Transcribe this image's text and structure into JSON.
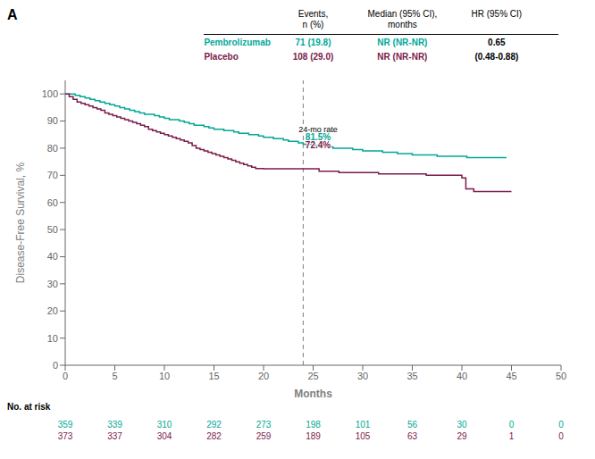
{
  "chart_data": {
    "type": "step",
    "title": "A",
    "x_label": "Months",
    "y_label": "Disease-Free Survival, %",
    "xlim": [
      0,
      50
    ],
    "xticks": [
      0,
      5,
      10,
      15,
      20,
      25,
      30,
      35,
      40,
      45,
      50
    ],
    "ylim": [
      0,
      105
    ],
    "yticks": [
      0,
      10,
      20,
      30,
      40,
      50,
      60,
      70,
      80,
      90,
      100
    ],
    "grid": false,
    "series": [
      {
        "name": "Pembrolizumab",
        "color": "#00A896",
        "x": [
          0,
          0.5,
          1,
          1.5,
          2,
          2.5,
          3,
          3.5,
          4,
          4.5,
          5,
          5.5,
          6,
          6.5,
          7,
          7.5,
          8,
          8.5,
          9,
          9.5,
          10,
          10.5,
          11,
          11.5,
          12,
          12.5,
          13,
          13.5,
          14,
          14.5,
          15,
          15.5,
          16,
          16.5,
          17,
          17.5,
          18,
          18.5,
          19,
          19.5,
          20,
          20.5,
          21,
          21.5,
          22,
          22.5,
          23,
          23.5,
          24,
          24.5,
          25,
          25.5,
          26,
          26.5,
          27,
          27.5,
          28,
          28.5,
          29,
          29.5,
          30,
          30.5,
          31,
          31.5,
          32,
          32.5,
          33,
          33.5,
          34,
          34.5,
          35,
          35.5,
          36,
          36.5,
          37,
          37.5,
          38,
          38.5,
          39,
          39.5,
          40,
          40.5,
          41,
          41.5,
          42,
          42.5,
          43,
          43.5,
          44,
          44.5
        ],
        "values": [
          100,
          100,
          99.5,
          99,
          98.5,
          98,
          97.5,
          97,
          96.5,
          96,
          95.5,
          95,
          94.5,
          94,
          93.5,
          93,
          92.5,
          92.5,
          92,
          91.5,
          91,
          90.5,
          90.5,
          90,
          89.5,
          89,
          88.5,
          88.5,
          88,
          87.5,
          87,
          87,
          86.5,
          86.5,
          86,
          85.5,
          85.5,
          85,
          85,
          84.5,
          84,
          84,
          83.5,
          83.5,
          83,
          82.5,
          82.5,
          82,
          81.5,
          81.5,
          81,
          81,
          80.5,
          80.5,
          80,
          80,
          80,
          80,
          79.5,
          79.5,
          79,
          79,
          79,
          79,
          78.5,
          78.5,
          78.5,
          78,
          78,
          78,
          77.5,
          77.5,
          77.5,
          77.5,
          77.5,
          77,
          77,
          77,
          77,
          77,
          77,
          76.5,
          76.5,
          76.5,
          76.5,
          76.5,
          76.5,
          76.5,
          76.5,
          76.5
        ],
        "at_risk": [
          359,
          339,
          310,
          292,
          273,
          198,
          101,
          56,
          30,
          0,
          0
        ]
      },
      {
        "name": "Placebo",
        "color": "#7B1C4B",
        "x": [
          0,
          0.4,
          0.8,
          1.2,
          1.6,
          2.0,
          2.4,
          2.8,
          3.2,
          3.6,
          4.0,
          4.4,
          4.8,
          5.2,
          5.6,
          6.0,
          6.4,
          6.8,
          7.2,
          7.6,
          8.0,
          8.4,
          8.8,
          9.2,
          9.6,
          10.0,
          10.4,
          10.8,
          11.2,
          11.6,
          12.0,
          12.4,
          12.8,
          13.2,
          13.6,
          14.0,
          14.4,
          14.8,
          15.2,
          15.6,
          16.0,
          16.4,
          16.8,
          17.2,
          17.6,
          18.0,
          18.4,
          18.8,
          19.2,
          19.6,
          20.0,
          20.4,
          20.8,
          21.2,
          21.6,
          22.0,
          22.4,
          22.8,
          23.2,
          23.6,
          24.0,
          24.4,
          24.8,
          25.2,
          25.6,
          26.0,
          26.4,
          26.8,
          27.2,
          27.6,
          28.0,
          28.4,
          28.8,
          29.2,
          29.6,
          30.0,
          30.4,
          30.8,
          31.2,
          31.6,
          32.0,
          32.4,
          32.8,
          33.2,
          33.6,
          34.0,
          34.4,
          34.8,
          35.2,
          35.6,
          36.0,
          36.4,
          36.8,
          37.2,
          37.6,
          38.0,
          38.4,
          38.8,
          39.2,
          39.6,
          40.0,
          40.4,
          40.8,
          41.2,
          41.6,
          42.0,
          42.4,
          42.8,
          43.2,
          43.6,
          44.0,
          44.4,
          44.8,
          45.0
        ],
        "values": [
          100,
          99,
          98,
          97,
          96.5,
          96,
          95.5,
          95,
          94.5,
          94,
          93,
          92.5,
          92,
          91.5,
          91,
          90.5,
          90,
          89.5,
          89,
          88.5,
          88,
          87,
          86.5,
          86,
          85.5,
          85,
          84.5,
          84,
          83.5,
          83,
          82.5,
          82,
          81,
          80,
          79.5,
          79,
          78.5,
          78,
          77.5,
          77,
          76.5,
          76,
          75.5,
          75,
          74.5,
          74,
          73.5,
          73,
          72.5,
          72.5,
          72.4,
          72.4,
          72.4,
          72.4,
          72.4,
          72.4,
          72.4,
          72.4,
          72.4,
          72.4,
          72.4,
          72.4,
          72.4,
          72.4,
          71.5,
          71.5,
          71.5,
          71.5,
          71.5,
          71,
          71,
          71,
          71,
          71,
          71,
          71,
          71,
          71,
          71,
          70.5,
          70.5,
          70.5,
          70.5,
          70.5,
          70.5,
          70.5,
          70.5,
          70.5,
          70.5,
          70.5,
          70.5,
          70,
          70,
          70,
          70,
          70,
          70,
          70,
          70,
          70,
          69,
          65,
          65,
          64,
          64,
          64,
          64,
          64,
          64,
          64,
          64,
          64,
          64,
          64
        ],
        "at_risk": [
          373,
          337,
          304,
          282,
          259,
          189,
          105,
          63,
          29,
          1,
          0
        ]
      }
    ],
    "reference_lines": [
      {
        "x": 24,
        "line_style": "dashed"
      }
    ],
    "annotations": [
      {
        "text": "24-mo rate",
        "x": 25.5,
        "y": 86
      },
      {
        "text": "81.5%",
        "x": 25.5,
        "y": 83,
        "series": "Pembrolizumab"
      },
      {
        "text": "72.4%",
        "x": 25.5,
        "y": 80,
        "series": "Placebo"
      }
    ],
    "table": {
      "columns": [
        "Events,\nn (%)",
        "Median (95% CI),\nmonths",
        "HR (95% CI)"
      ],
      "rows": [
        [
          "71 (19.8)",
          "NR (NR-NR)",
          "0.65"
        ],
        [
          "108 (29.0)",
          "NR (NR-NR)",
          "(0.48-0.88)"
        ]
      ]
    },
    "at_risk_label": "No. at risk",
    "at_risk_x": [
      0,
      5,
      10,
      15,
      20,
      25,
      30,
      35,
      40,
      45,
      50
    ]
  }
}
